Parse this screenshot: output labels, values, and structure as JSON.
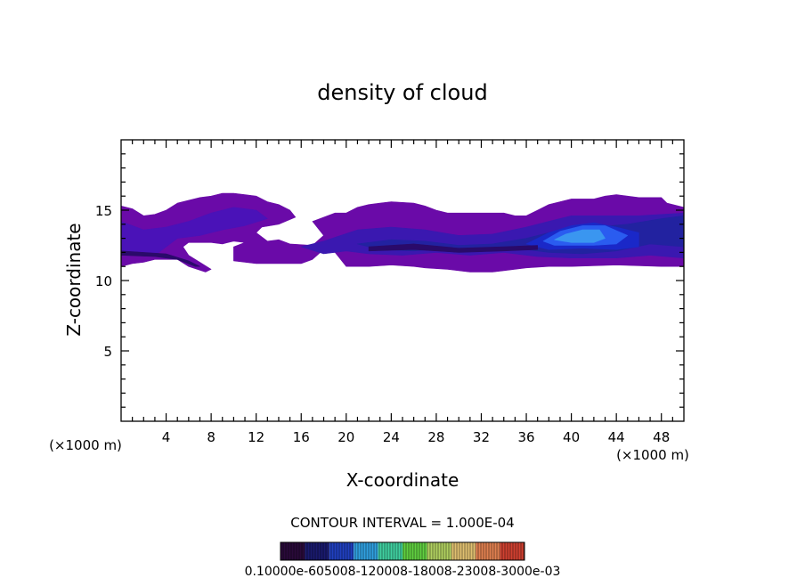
{
  "chart_data": {
    "type": "heatmap",
    "title": "density of cloud",
    "xlabel": "X-coordinate",
    "ylabel": "Z-coordinate",
    "x_unit_label": "(×1000 m)",
    "y_unit_label": "(×1000 m)",
    "xlim": [
      0,
      50
    ],
    "ylim": [
      0,
      20
    ],
    "x_ticks": [
      4,
      8,
      12,
      16,
      20,
      24,
      28,
      32,
      36,
      40,
      44,
      48
    ],
    "y_ticks": [
      5,
      10,
      15
    ],
    "contour_interval_text": "CONTOUR INTERVAL = 1.000E-04",
    "colorbar_labels_text": "0.10000e-605008-120008-18008-23008-3000e-03",
    "colorbar_colors": [
      "#2a0a3a",
      "#1a1a6e",
      "#2040c0",
      "#30a0e0",
      "#40d0a0",
      "#60d040",
      "#b0d060",
      "#e0c070",
      "#e08050",
      "#d04030"
    ],
    "cloud_layers": [
      {
        "level": 1,
        "color": "#6a0aa8",
        "polygon": [
          [
            0,
            15.3
          ],
          [
            1,
            15.1
          ],
          [
            2,
            14.6
          ],
          [
            3,
            14.7
          ],
          [
            4,
            15.0
          ],
          [
            5,
            15.5
          ],
          [
            6,
            15.7
          ],
          [
            7,
            15.9
          ],
          [
            8,
            16.0
          ],
          [
            9,
            16.2
          ],
          [
            10,
            16.2
          ],
          [
            11,
            16.1
          ],
          [
            12,
            16.0
          ],
          [
            13,
            15.6
          ],
          [
            14,
            15.4
          ],
          [
            15,
            15.0
          ],
          [
            15.5,
            14.5
          ],
          [
            14,
            14.0
          ],
          [
            12.5,
            13.8
          ],
          [
            12,
            13.4
          ],
          [
            13,
            12.8
          ],
          [
            14,
            12.9
          ],
          [
            15,
            12.6
          ],
          [
            17,
            12.5
          ],
          [
            18,
            13.2
          ],
          [
            17,
            14.2
          ],
          [
            19,
            14.8
          ],
          [
            20,
            14.8
          ],
          [
            21,
            15.2
          ],
          [
            22,
            15.4
          ],
          [
            23,
            15.5
          ],
          [
            24,
            15.6
          ],
          [
            26,
            15.5
          ],
          [
            27,
            15.3
          ],
          [
            28,
            15.0
          ],
          [
            29,
            14.8
          ],
          [
            30,
            14.8
          ],
          [
            31,
            14.8
          ],
          [
            34,
            14.8
          ],
          [
            35,
            14.6
          ],
          [
            36,
            14.6
          ],
          [
            37,
            15.0
          ],
          [
            38,
            15.4
          ],
          [
            39,
            15.6
          ],
          [
            40,
            15.8
          ],
          [
            42,
            15.8
          ],
          [
            43,
            16.0
          ],
          [
            44,
            16.1
          ],
          [
            45,
            16.0
          ],
          [
            46,
            15.9
          ],
          [
            48,
            15.9
          ],
          [
            48.5,
            15.5
          ],
          [
            50,
            15.2
          ],
          [
            50,
            11.0
          ],
          [
            48,
            11.0
          ],
          [
            44,
            11.1
          ],
          [
            40,
            11.0
          ],
          [
            38,
            11.0
          ],
          [
            36,
            10.9
          ],
          [
            34,
            10.7
          ],
          [
            33,
            10.6
          ],
          [
            31,
            10.6
          ],
          [
            29,
            10.8
          ],
          [
            27,
            10.9
          ],
          [
            26,
            11.0
          ],
          [
            24,
            11.1
          ],
          [
            22,
            11.0
          ],
          [
            20,
            11.0
          ],
          [
            19.5,
            11.5
          ],
          [
            19,
            12.0
          ],
          [
            18,
            12.2
          ],
          [
            17,
            11.5
          ],
          [
            16,
            11.2
          ],
          [
            14,
            11.2
          ],
          [
            12,
            11.2
          ],
          [
            10,
            11.4
          ],
          [
            10,
            12.4
          ],
          [
            11,
            12.7
          ],
          [
            10,
            12.8
          ],
          [
            9,
            12.6
          ],
          [
            8,
            12.7
          ],
          [
            6,
            12.7
          ],
          [
            5.5,
            12.4
          ],
          [
            6,
            11.8
          ],
          [
            7,
            11.3
          ],
          [
            8,
            10.8
          ],
          [
            7.5,
            10.6
          ],
          [
            6,
            11.0
          ],
          [
            5,
            11.5
          ],
          [
            3,
            11.5
          ],
          [
            2,
            11.3
          ],
          [
            1,
            11.2
          ],
          [
            0,
            11.0
          ]
        ]
      },
      {
        "level": 2,
        "color": "#4a12b8",
        "polygon": [
          [
            0,
            14.2
          ],
          [
            2,
            13.6
          ],
          [
            4,
            13.8
          ],
          [
            6,
            14.2
          ],
          [
            8,
            14.8
          ],
          [
            10,
            15.2
          ],
          [
            12,
            15.0
          ],
          [
            13,
            14.4
          ],
          [
            11,
            13.9
          ],
          [
            9,
            13.6
          ],
          [
            7,
            13.2
          ],
          [
            5,
            13.0
          ],
          [
            4,
            12.4
          ],
          [
            3,
            11.8
          ],
          [
            1,
            11.8
          ],
          [
            0,
            12.0
          ]
        ]
      },
      {
        "level": 3,
        "color": "#3a18b0",
        "polygon": [
          [
            16,
            12.4
          ],
          [
            18,
            12.8
          ],
          [
            21,
            13.6
          ],
          [
            24,
            13.8
          ],
          [
            27,
            13.6
          ],
          [
            30,
            13.2
          ],
          [
            33,
            13.3
          ],
          [
            36,
            13.8
          ],
          [
            38,
            14.2
          ],
          [
            40,
            14.6
          ],
          [
            43,
            14.6
          ],
          [
            46,
            14.6
          ],
          [
            50,
            14.8
          ],
          [
            50,
            11.6
          ],
          [
            47,
            11.8
          ],
          [
            44,
            11.6
          ],
          [
            40,
            11.6
          ],
          [
            37,
            11.7
          ],
          [
            34,
            12.0
          ],
          [
            31,
            11.8
          ],
          [
            28,
            12.0
          ],
          [
            25,
            11.8
          ],
          [
            22,
            11.9
          ],
          [
            20,
            12.1
          ],
          [
            18,
            11.9
          ]
        ]
      },
      {
        "level": 4,
        "color": "#2222a0",
        "polygon": [
          [
            21,
            12.6
          ],
          [
            24,
            12.9
          ],
          [
            27,
            12.8
          ],
          [
            30,
            12.5
          ],
          [
            33,
            12.6
          ],
          [
            36,
            13.0
          ],
          [
            39,
            13.6
          ],
          [
            42,
            13.8
          ],
          [
            45,
            14.0
          ],
          [
            48,
            14.4
          ],
          [
            50,
            14.6
          ],
          [
            50,
            12.4
          ],
          [
            47,
            12.6
          ],
          [
            44,
            12.1
          ],
          [
            41,
            11.9
          ],
          [
            38,
            12.0
          ],
          [
            35,
            12.3
          ],
          [
            32,
            12.1
          ],
          [
            29,
            12.3
          ],
          [
            26,
            12.1
          ],
          [
            23,
            12.2
          ]
        ]
      },
      {
        "level": 5,
        "color": "#1a28c8",
        "polygon": [
          [
            36,
            12.6
          ],
          [
            38,
            13.4
          ],
          [
            40,
            13.9
          ],
          [
            42,
            14.1
          ],
          [
            44,
            13.8
          ],
          [
            46,
            13.4
          ],
          [
            46,
            12.4
          ],
          [
            44,
            12.2
          ],
          [
            41,
            12.3
          ],
          [
            38,
            12.2
          ]
        ]
      },
      {
        "level": 6,
        "color": "#2a5cf0",
        "polygon": [
          [
            37.5,
            12.8
          ],
          [
            39,
            13.5
          ],
          [
            41,
            13.9
          ],
          [
            43,
            13.9
          ],
          [
            45,
            13.2
          ],
          [
            44,
            12.6
          ],
          [
            42,
            12.5
          ],
          [
            40,
            12.5
          ],
          [
            38.5,
            12.5
          ]
        ]
      },
      {
        "level": 7,
        "color": "#3a96f0",
        "polygon": [
          [
            38.5,
            12.9
          ],
          [
            39.5,
            13.3
          ],
          [
            41,
            13.6
          ],
          [
            42.5,
            13.6
          ],
          [
            43,
            13.0
          ],
          [
            42,
            12.7
          ],
          [
            40,
            12.7
          ]
        ]
      },
      {
        "level": 8,
        "color": "#2a0a6a",
        "polygon": [
          [
            0,
            12.1
          ],
          [
            2,
            12.0
          ],
          [
            4,
            11.9
          ],
          [
            6,
            11.4
          ],
          [
            7,
            11.0
          ],
          [
            6.6,
            11.0
          ],
          [
            5,
            11.5
          ],
          [
            3,
            11.7
          ],
          [
            0,
            11.8
          ]
        ]
      },
      {
        "level": 8,
        "color": "#2a0a6a",
        "polygon": [
          [
            22,
            12.4
          ],
          [
            26,
            12.6
          ],
          [
            30,
            12.3
          ],
          [
            34,
            12.4
          ],
          [
            37,
            12.5
          ],
          [
            37,
            12.2
          ],
          [
            34,
            12.1
          ],
          [
            30,
            12.0
          ],
          [
            26,
            12.2
          ],
          [
            22,
            12.1
          ]
        ]
      }
    ]
  }
}
